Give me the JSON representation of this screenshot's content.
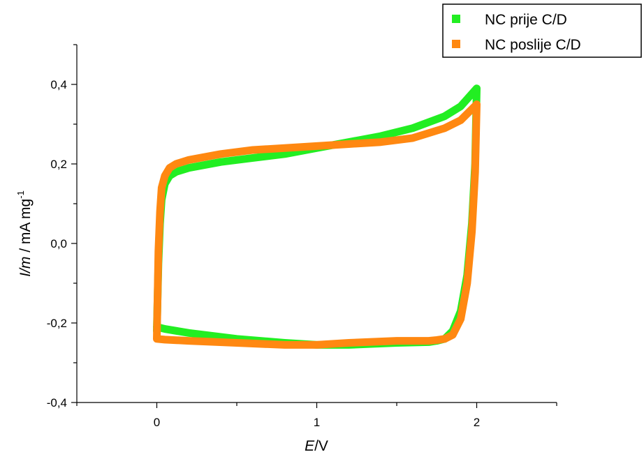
{
  "chart_data": {
    "type": "line",
    "xlabel": {
      "italic": "E",
      "rest": "/V"
    },
    "ylabel": {
      "italic": "I/m",
      "rest": " / mA mg",
      "superscript": "-1"
    },
    "xlim": [
      -0.5,
      2.5
    ],
    "ylim": [
      -0.4,
      0.5
    ],
    "x_ticks": [
      0,
      1,
      2
    ],
    "x_tick_labels": [
      "0",
      "1",
      "2"
    ],
    "y_ticks": [
      -0.4,
      -0.2,
      0.0,
      0.2,
      0.4
    ],
    "y_tick_labels": [
      "-0,4",
      "-0,2",
      "0,0",
      "0,2",
      "0,4"
    ],
    "grid": false,
    "legend_position": "top-right",
    "series": [
      {
        "name": "NC prije C/D",
        "color": "#22ee22",
        "x": [
          0.0,
          0.01,
          0.02,
          0.03,
          0.05,
          0.08,
          0.12,
          0.2,
          0.4,
          0.6,
          0.8,
          1.0,
          1.2,
          1.4,
          1.6,
          1.8,
          1.9,
          2.0,
          1.99,
          1.97,
          1.94,
          1.9,
          1.85,
          1.8,
          1.75,
          1.7,
          1.5,
          1.2,
          1.0,
          0.8,
          0.5,
          0.2,
          0.05,
          0.0
        ],
        "y": [
          -0.22,
          -0.05,
          0.05,
          0.11,
          0.15,
          0.17,
          0.18,
          0.19,
          0.205,
          0.215,
          0.225,
          0.24,
          0.255,
          0.27,
          0.29,
          0.32,
          0.345,
          0.39,
          0.2,
          0.05,
          -0.08,
          -0.17,
          -0.22,
          -0.24,
          -0.245,
          -0.248,
          -0.25,
          -0.255,
          -0.255,
          -0.25,
          -0.24,
          -0.225,
          -0.215,
          -0.21
        ]
      },
      {
        "name": "NC poslije C/D",
        "color": "#ff8811",
        "x": [
          0.0,
          0.01,
          0.02,
          0.03,
          0.05,
          0.08,
          0.12,
          0.2,
          0.4,
          0.6,
          0.8,
          1.0,
          1.2,
          1.4,
          1.6,
          1.8,
          1.9,
          2.0,
          1.99,
          1.97,
          1.94,
          1.9,
          1.85,
          1.8,
          1.75,
          1.7,
          1.5,
          1.2,
          1.0,
          0.8,
          0.5,
          0.2,
          0.05,
          0.0
        ],
        "y": [
          -0.24,
          -0.02,
          0.08,
          0.14,
          0.17,
          0.19,
          0.2,
          0.21,
          0.225,
          0.235,
          0.24,
          0.245,
          0.25,
          0.255,
          0.265,
          0.29,
          0.31,
          0.35,
          0.18,
          0.03,
          -0.1,
          -0.19,
          -0.23,
          -0.24,
          -0.243,
          -0.245,
          -0.245,
          -0.25,
          -0.255,
          -0.255,
          -0.25,
          -0.245,
          -0.242,
          -0.24
        ]
      }
    ]
  }
}
